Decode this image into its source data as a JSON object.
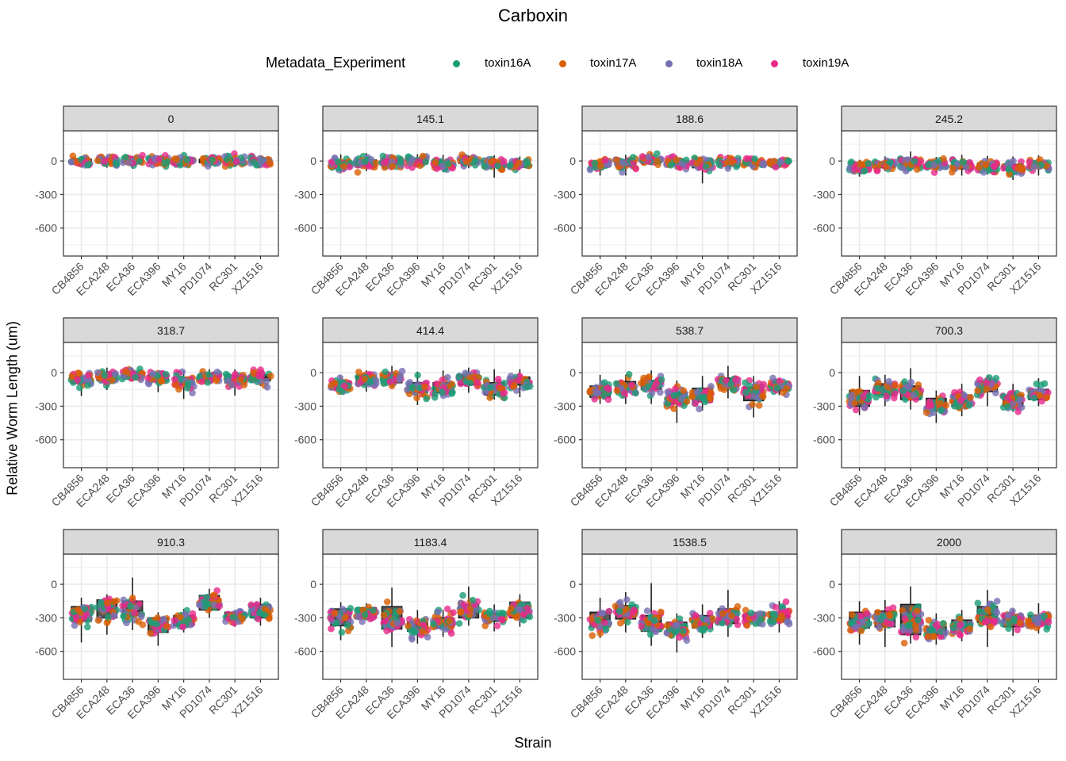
{
  "chart_data": {
    "type": "scatter",
    "subtype": "faceted boxplot with jittered points",
    "title": "Carboxin",
    "xlabel": "Strain",
    "ylabel": "Relative Worm Length (um)",
    "legend": {
      "title": "Metadata_Experiment",
      "placement": "top",
      "entries": [
        {
          "name": "toxin16A",
          "color": "#1B9E77"
        },
        {
          "name": "toxin17A",
          "color": "#D95F02"
        },
        {
          "name": "toxin18A",
          "color": "#7570B3"
        },
        {
          "name": "toxin19A",
          "color": "#E7298A"
        }
      ]
    },
    "categories": [
      "CB4856",
      "ECA248",
      "ECA36",
      "ECA396",
      "MY16",
      "PD1074",
      "RC301",
      "XZ1516"
    ],
    "yticks": [
      0,
      -300,
      -600
    ],
    "ylim": [
      -850,
      270
    ],
    "grid": true,
    "facet_layout": {
      "rows": 3,
      "cols": 4
    },
    "box_stat_fields": [
      "median",
      "q1",
      "q3",
      "whisker_low",
      "whisker_high",
      "spread"
    ],
    "panels": [
      {
        "label": "0",
        "boxes": [
          [
            0,
            -15,
            15,
            -60,
            45,
            30
          ],
          [
            5,
            -10,
            15,
            -60,
            50,
            30
          ],
          [
            0,
            -15,
            10,
            -70,
            45,
            30
          ],
          [
            0,
            -15,
            15,
            -40,
            50,
            28
          ],
          [
            0,
            -15,
            15,
            -50,
            45,
            28
          ],
          [
            0,
            -15,
            15,
            -50,
            45,
            28
          ],
          [
            0,
            -15,
            15,
            -50,
            60,
            30
          ],
          [
            0,
            -10,
            10,
            -30,
            40,
            25
          ]
        ]
      },
      {
        "label": "145.1",
        "boxes": [
          [
            -25,
            -45,
            5,
            -110,
            60,
            35
          ],
          [
            -15,
            -40,
            10,
            -90,
            70,
            38
          ],
          [
            -5,
            -30,
            15,
            -70,
            60,
            32
          ],
          [
            0,
            -25,
            20,
            -50,
            60,
            30
          ],
          [
            -35,
            -55,
            -10,
            -100,
            55,
            35
          ],
          [
            0,
            -20,
            15,
            -65,
            50,
            30
          ],
          [
            -30,
            -55,
            0,
            -150,
            50,
            38
          ],
          [
            -35,
            -55,
            -5,
            -80,
            40,
            30
          ]
        ]
      },
      {
        "label": "188.6",
        "boxes": [
          [
            -30,
            -50,
            -10,
            -130,
            10,
            28
          ],
          [
            -20,
            -50,
            0,
            -130,
            55,
            38
          ],
          [
            10,
            -10,
            25,
            -35,
            75,
            28
          ],
          [
            -20,
            -40,
            0,
            -70,
            45,
            30
          ],
          [
            -35,
            -60,
            -10,
            -200,
            35,
            42
          ],
          [
            -20,
            -40,
            0,
            -70,
            55,
            30
          ],
          [
            -15,
            -40,
            5,
            -70,
            40,
            30
          ],
          [
            -15,
            -30,
            5,
            -50,
            25,
            25
          ]
        ]
      },
      {
        "label": "245.2",
        "boxes": [
          [
            -55,
            -75,
            -30,
            -140,
            10,
            35
          ],
          [
            -40,
            -60,
            -10,
            -90,
            40,
            35
          ],
          [
            -20,
            -40,
            0,
            -90,
            85,
            38
          ],
          [
            -35,
            -60,
            -15,
            -100,
            35,
            32
          ],
          [
            -45,
            -70,
            -20,
            -130,
            55,
            38
          ],
          [
            -50,
            -70,
            -20,
            -120,
            45,
            35
          ],
          [
            -55,
            -80,
            -30,
            -170,
            40,
            38
          ],
          [
            -40,
            -60,
            -20,
            -130,
            50,
            32
          ]
        ]
      },
      {
        "label": "318.7",
        "boxes": [
          [
            -60,
            -95,
            -35,
            -210,
            10,
            42
          ],
          [
            -40,
            -70,
            -10,
            -155,
            45,
            42
          ],
          [
            -20,
            -45,
            0,
            -80,
            40,
            32
          ],
          [
            -50,
            -70,
            -20,
            -175,
            15,
            35
          ],
          [
            -80,
            -110,
            -45,
            -235,
            15,
            45
          ],
          [
            -40,
            -70,
            -10,
            -100,
            30,
            38
          ],
          [
            -60,
            -90,
            -30,
            -205,
            30,
            42
          ],
          [
            -40,
            -70,
            -20,
            -120,
            20,
            35
          ]
        ]
      },
      {
        "label": "414.4",
        "boxes": [
          [
            -120,
            -150,
            -80,
            -180,
            -30,
            38
          ],
          [
            -70,
            -110,
            -30,
            -170,
            20,
            42
          ],
          [
            -50,
            -90,
            -20,
            -130,
            60,
            42
          ],
          [
            -140,
            -180,
            -90,
            -290,
            10,
            48
          ],
          [
            -140,
            -180,
            -90,
            -210,
            20,
            48
          ],
          [
            -60,
            -110,
            -20,
            -180,
            45,
            45
          ],
          [
            -130,
            -200,
            -90,
            -240,
            30,
            50
          ],
          [
            -80,
            -110,
            -40,
            -220,
            30,
            40
          ]
        ]
      },
      {
        "label": "538.7",
        "boxes": [
          [
            -160,
            -220,
            -120,
            -280,
            -20,
            48
          ],
          [
            -130,
            -170,
            -80,
            -280,
            -20,
            45
          ],
          [
            -100,
            -150,
            -70,
            -280,
            20,
            45
          ],
          [
            -230,
            -280,
            -180,
            -450,
            -70,
            55
          ],
          [
            -200,
            -260,
            -140,
            -340,
            -30,
            55
          ],
          [
            -100,
            -130,
            -50,
            -230,
            60,
            50
          ],
          [
            -180,
            -250,
            -130,
            -400,
            -30,
            65
          ],
          [
            -130,
            -160,
            -100,
            -200,
            -50,
            38
          ]
        ]
      },
      {
        "label": "700.3",
        "boxes": [
          [
            -230,
            -300,
            -160,
            -380,
            -30,
            62
          ],
          [
            -150,
            -200,
            -100,
            -300,
            -20,
            55
          ],
          [
            -180,
            -240,
            -120,
            -330,
            40,
            60
          ],
          [
            -290,
            -340,
            -230,
            -450,
            -160,
            55
          ],
          [
            -250,
            -300,
            -200,
            -390,
            -100,
            50
          ],
          [
            -120,
            -170,
            -80,
            -300,
            -20,
            55
          ],
          [
            -250,
            -300,
            -200,
            -350,
            -100,
            50
          ],
          [
            -200,
            -240,
            -150,
            -300,
            -50,
            48
          ]
        ]
      },
      {
        "label": "910.3",
        "boxes": [
          [
            -270,
            -330,
            -200,
            -520,
            -120,
            65
          ],
          [
            -220,
            -300,
            -140,
            -450,
            -90,
            65
          ],
          [
            -240,
            -280,
            -150,
            -410,
            60,
            75
          ],
          [
            -370,
            -430,
            -300,
            -550,
            -250,
            55
          ],
          [
            -330,
            -370,
            -280,
            -430,
            -220,
            50
          ],
          [
            -160,
            -230,
            -100,
            -300,
            -40,
            55
          ],
          [
            -290,
            -320,
            -250,
            -380,
            -230,
            40
          ],
          [
            -240,
            -300,
            -180,
            -370,
            -120,
            55
          ]
        ]
      },
      {
        "label": "1183.4",
        "boxes": [
          [
            -300,
            -370,
            -220,
            -500,
            -160,
            65
          ],
          [
            -260,
            -300,
            -210,
            -320,
            -170,
            45
          ],
          [
            -320,
            -400,
            -200,
            -560,
            -30,
            80
          ],
          [
            -390,
            -420,
            -340,
            -530,
            -230,
            55
          ],
          [
            -340,
            -390,
            -300,
            -470,
            -230,
            50
          ],
          [
            -230,
            -300,
            -180,
            -370,
            -20,
            60
          ],
          [
            -300,
            -330,
            -260,
            -420,
            -180,
            45
          ],
          [
            -240,
            -300,
            -160,
            -380,
            -90,
            55
          ]
        ]
      },
      {
        "label": "1538.5",
        "boxes": [
          [
            -320,
            -380,
            -250,
            -480,
            -120,
            62
          ],
          [
            -250,
            -310,
            -190,
            -430,
            -70,
            60
          ],
          [
            -340,
            -420,
            -280,
            -550,
            10,
            80
          ],
          [
            -400,
            -440,
            -340,
            -610,
            -260,
            60
          ],
          [
            -330,
            -390,
            -280,
            -480,
            -180,
            55
          ],
          [
            -290,
            -350,
            -220,
            -470,
            -50,
            62
          ],
          [
            -300,
            -320,
            -270,
            -370,
            -240,
            40
          ],
          [
            -280,
            -330,
            -250,
            -430,
            -150,
            50
          ]
        ]
      },
      {
        "label": "2000",
        "boxes": [
          [
            -340,
            -390,
            -250,
            -540,
            -150,
            62
          ],
          [
            -300,
            -380,
            -240,
            -560,
            -140,
            65
          ],
          [
            -330,
            -450,
            -180,
            -530,
            -20,
            85
          ],
          [
            -410,
            -450,
            -380,
            -540,
            -260,
            55
          ],
          [
            -380,
            -400,
            -320,
            -510,
            -230,
            50
          ],
          [
            -270,
            -340,
            -200,
            -560,
            -50,
            75
          ],
          [
            -320,
            -380,
            -270,
            -460,
            -220,
            45
          ],
          [
            -320,
            -360,
            -280,
            -440,
            -170,
            50
          ]
        ]
      }
    ]
  }
}
